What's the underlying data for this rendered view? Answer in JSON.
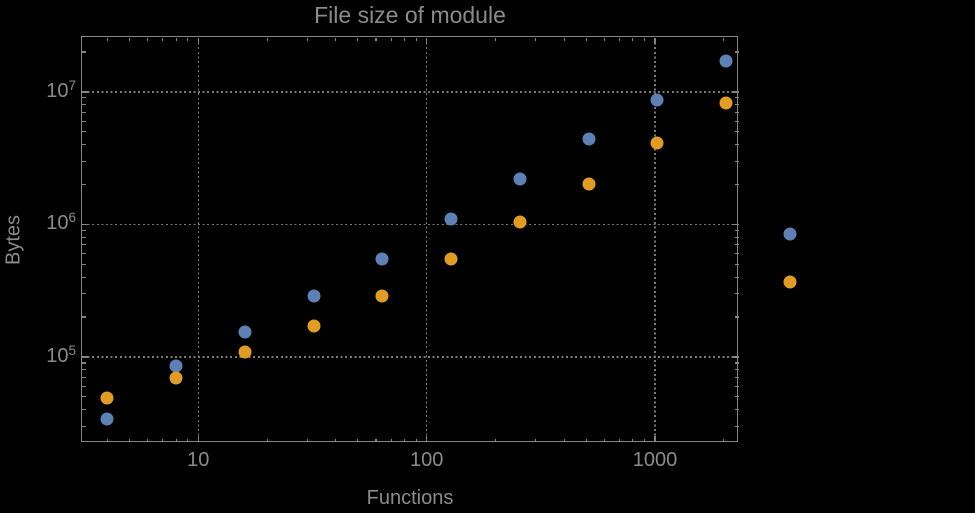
{
  "chart_data": {
    "type": "scatter",
    "title": "File size of module",
    "xlabel": "Functions",
    "ylabel": "Bytes",
    "xscale": "log",
    "yscale": "log",
    "xlim": [
      3.08,
      2343
    ],
    "ylim": [
      22400,
      25950000
    ],
    "grid": "dotted-major",
    "legend": "none",
    "x_ticks": [
      {
        "value": 10,
        "label": "10"
      },
      {
        "value": 100,
        "label": "100"
      },
      {
        "value": 1000,
        "label": "1000"
      }
    ],
    "y_ticks": [
      {
        "value": 100000,
        "base": "10",
        "exp": "5"
      },
      {
        "value": 1000000,
        "base": "10",
        "exp": "6"
      },
      {
        "value": 10000000,
        "base": "10",
        "exp": "7"
      }
    ],
    "x": [
      4,
      8,
      16,
      32,
      64,
      128,
      256,
      512,
      1024,
      2048,
      3900
    ],
    "series": [
      {
        "name": "blue",
        "color": "#5e81b5",
        "values": [
          34000,
          85000,
          154000,
          288000,
          549000,
          1100000,
          2210000,
          4420000,
          8700000,
          17100000,
          850000
        ]
      },
      {
        "name": "orange",
        "color": "#e19c24",
        "values": [
          49000,
          69000,
          109000,
          171000,
          288000,
          549000,
          1040000,
          2020000,
          4120000,
          8260000,
          368000
        ]
      }
    ]
  },
  "colors": {
    "background": "#000000",
    "frame": "#858585",
    "grid": "#7a7a7a",
    "text": "#8b8b8b"
  }
}
